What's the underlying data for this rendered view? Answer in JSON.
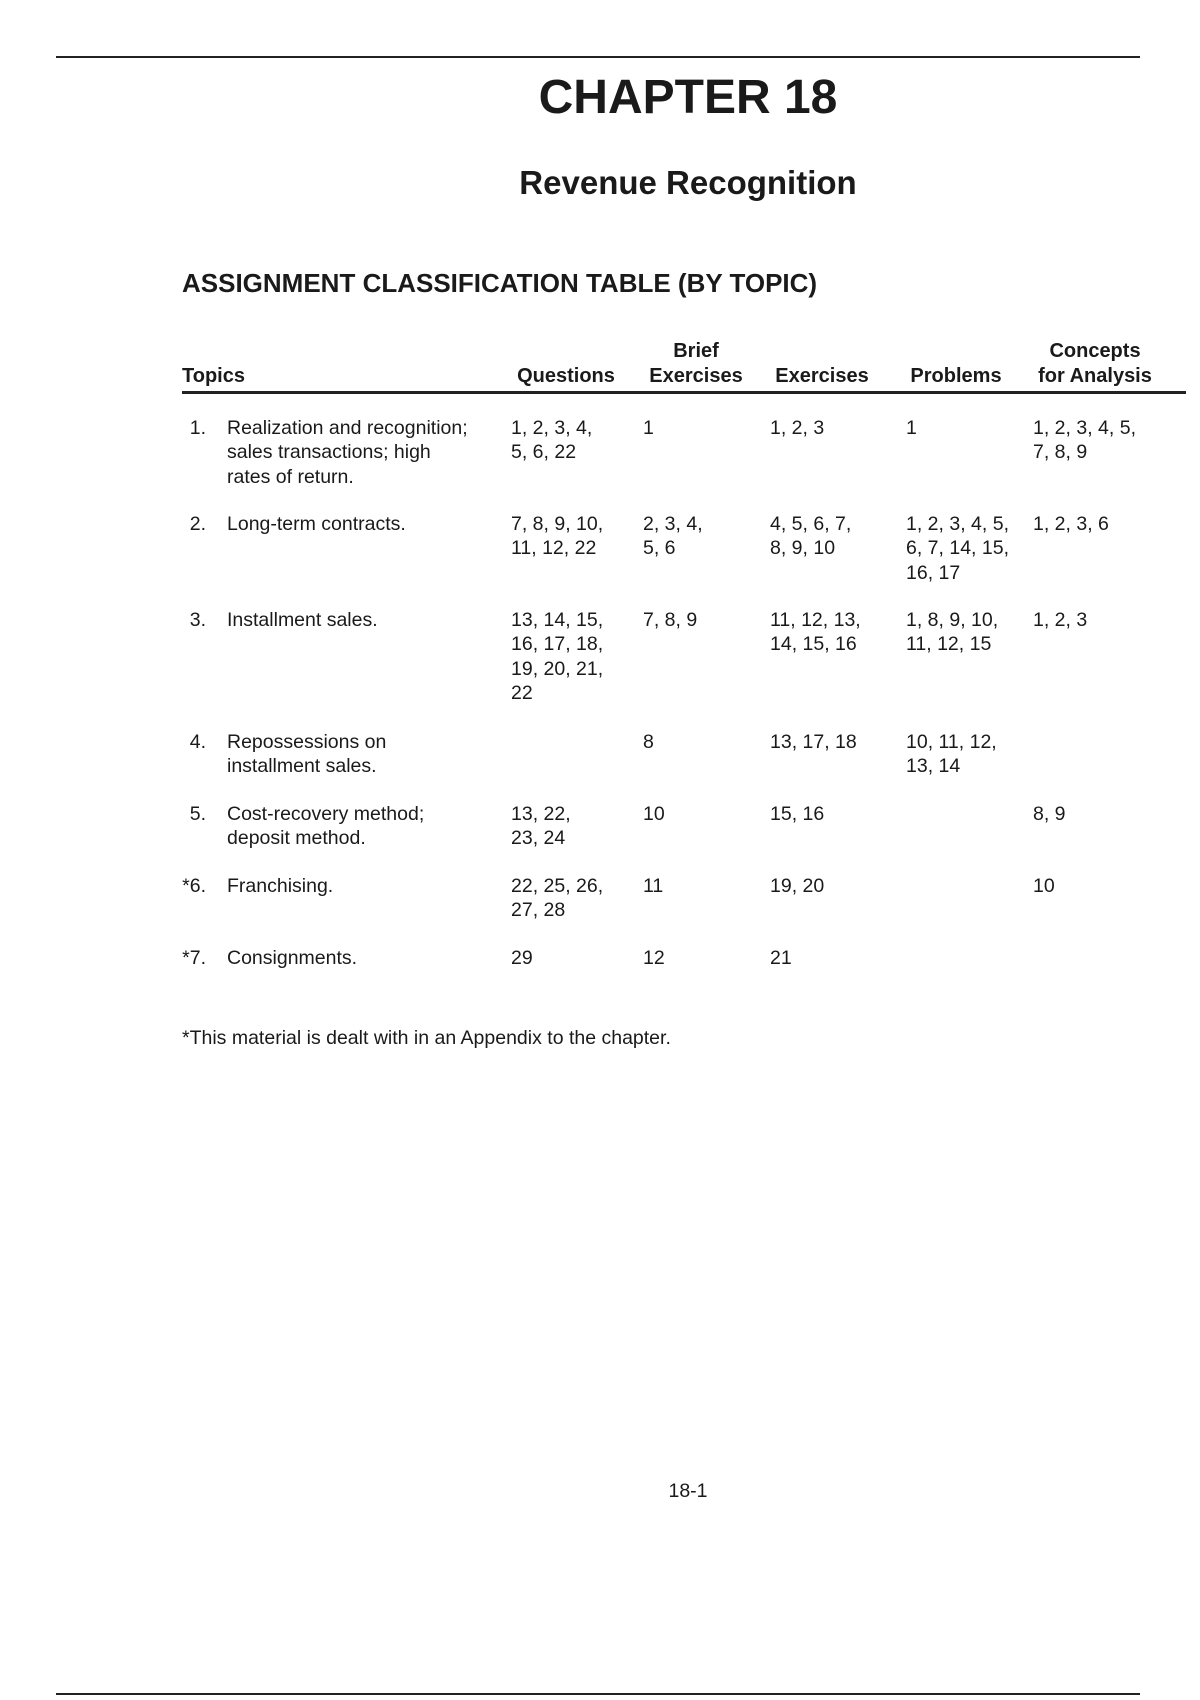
{
  "chapter_title": "CHAPTER 18",
  "chapter_subtitle": "Revenue Recognition",
  "section_heading": "ASSIGNMENT CLASSIFICATION TABLE (BY TOPIC)",
  "table": {
    "columns": [
      {
        "line1": "",
        "line2": "Topics"
      },
      {
        "line1": "",
        "line2": "Questions"
      },
      {
        "line1": "Brief",
        "line2": "Exercises"
      },
      {
        "line1": "",
        "line2": "Exercises"
      },
      {
        "line1": "",
        "line2": "Problems"
      },
      {
        "line1": "Concepts",
        "line2": "for Analysis"
      }
    ],
    "rows": [
      {
        "num": "1.",
        "topic": "Realization and recognition;\nsales transactions; high\nrates of return.",
        "questions": "1, 2, 3, 4,\n5, 6, 22",
        "brief": "1",
        "exercises": "1, 2, 3",
        "problems": "1",
        "concepts": "1, 2, 3, 4, 5,\n7, 8, 9"
      },
      {
        "num": "2.",
        "topic": "Long-term contracts.",
        "questions": "7, 8, 9, 10,\n11, 12, 22",
        "brief": "2, 3, 4,\n5, 6",
        "exercises": "4, 5, 6, 7,\n8, 9, 10",
        "problems": "1, 2, 3, 4, 5,\n6, 7, 14, 15,\n16, 17",
        "concepts": "1, 2, 3, 6"
      },
      {
        "num": "3.",
        "topic": "Installment sales.",
        "questions": "13, 14, 15,\n16, 17, 18,\n19, 20, 21,\n22",
        "brief": "7, 8, 9",
        "exercises": "11, 12, 13,\n14, 15, 16",
        "problems": "1, 8, 9, 10,\n11, 12, 15",
        "concepts": "1, 2, 3"
      },
      {
        "num": "4.",
        "topic": "Repossessions on\ninstallment sales.",
        "questions": "",
        "brief": "8",
        "exercises": "13, 17, 18",
        "problems": "10, 11, 12,\n13, 14",
        "concepts": ""
      },
      {
        "num": "5.",
        "topic": "Cost-recovery method;\ndeposit method.",
        "questions": "13, 22,\n23, 24",
        "brief": "10",
        "exercises": "15, 16",
        "problems": "",
        "concepts": "8, 9"
      },
      {
        "num": "*6.",
        "topic": "Franchising.",
        "questions": "22, 25, 26,\n27, 28",
        "brief": "11",
        "exercises": "19, 20",
        "problems": "",
        "concepts": "10"
      },
      {
        "num": "*7.",
        "topic": "Consignments.",
        "questions": "29",
        "brief": "12",
        "exercises": "21",
        "problems": "",
        "concepts": ""
      }
    ]
  },
  "footnote": "*This material is dealt with in an Appendix to the chapter.",
  "page_number": "18-1"
}
